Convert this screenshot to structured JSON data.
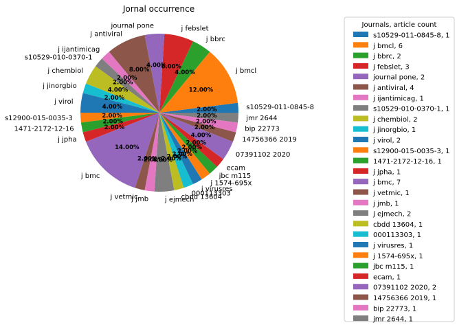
{
  "chart_data": {
    "type": "pie",
    "title": "Jornal occurrence",
    "legend_title": "Journals, article count",
    "legend_position": "right",
    "counterclockwise": true,
    "start_angle_deg": 0,
    "slices": [
      {
        "label": "s10529-011-0845-8",
        "value": 1,
        "percent": "2.00%",
        "legend": "s10529-011-0845-8, 1",
        "color": "#1f77b4"
      },
      {
        "label": "j bmcl",
        "value": 6,
        "percent": "12.00%",
        "legend": "j bmcl, 6",
        "color": "#ff7f0e"
      },
      {
        "label": "j bbrc",
        "value": 2,
        "percent": "4.00%",
        "legend": "j bbrc, 2",
        "color": "#2ca02c"
      },
      {
        "label": "j febslet",
        "value": 3,
        "percent": "6.00%",
        "legend": "j febslet, 3",
        "color": "#d62728"
      },
      {
        "label": "journal pone",
        "value": 2,
        "percent": "4.00%",
        "legend": "journal pone, 2",
        "color": "#9467bd"
      },
      {
        "label": "j antiviral",
        "value": 4,
        "percent": "8.00%",
        "legend": "j antiviral, 4",
        "color": "#8c564b"
      },
      {
        "label": "j ijantimicag",
        "value": 1,
        "percent": "2.00%",
        "legend": "j ijantimicag, 1",
        "color": "#e377c2"
      },
      {
        "label": "s10529-010-0370-1",
        "value": 1,
        "percent": "2.00%",
        "legend": "s10529-010-0370-1, 1",
        "color": "#7f7f7f"
      },
      {
        "label": "j chembiol",
        "value": 2,
        "percent": "4.00%",
        "legend": "j chembiol, 2",
        "color": "#bcbd22"
      },
      {
        "label": "j jinorgbio",
        "value": 1,
        "percent": "2.00%",
        "legend": "j jinorgbio, 1",
        "color": "#17becf"
      },
      {
        "label": "j virol",
        "value": 2,
        "percent": "4.00%",
        "legend": "j virol, 2",
        "color": "#1f77b4"
      },
      {
        "label": "s12900-015-0035-3",
        "value": 1,
        "percent": "2.00%",
        "legend": "s12900-015-0035-3, 1",
        "color": "#ff7f0e"
      },
      {
        "label": "1471-2172-12-16",
        "value": 1,
        "percent": "2.00%",
        "legend": "1471-2172-12-16, 1",
        "color": "#2ca02c"
      },
      {
        "label": "j jpha",
        "value": 1,
        "percent": "2.00%",
        "legend": "j jpha, 1",
        "color": "#d62728"
      },
      {
        "label": "j bmc",
        "value": 7,
        "percent": "14.00%",
        "legend": "j bmc, 7",
        "color": "#9467bd"
      },
      {
        "label": "j vetmic",
        "value": 1,
        "percent": "2.00%",
        "legend": "j vetmic, 1",
        "color": "#8c564b"
      },
      {
        "label": "j jmb",
        "value": 1,
        "percent": "2.00%",
        "legend": "j jmb, 1",
        "color": "#e377c2"
      },
      {
        "label": "j ejmech",
        "value": 2,
        "percent": "4.00%",
        "legend": "j ejmech, 2",
        "color": "#7f7f7f"
      },
      {
        "label": "cbdd 13604",
        "value": 1,
        "percent": "2.00%",
        "legend": "cbdd 13604, 1",
        "color": "#bcbd22"
      },
      {
        "label": "000113303",
        "value": 1,
        "percent": "2.00%",
        "legend": "000113303, 1",
        "color": "#17becf"
      },
      {
        "label": "j virusres",
        "value": 1,
        "percent": "2.00%",
        "legend": "j virusres, 1",
        "color": "#1f77b4"
      },
      {
        "label": "j 1574-695x",
        "value": 1,
        "percent": "2.00%",
        "legend": "j 1574-695x, 1",
        "color": "#ff7f0e"
      },
      {
        "label": "jbc m115",
        "value": 1,
        "percent": "2.00%",
        "legend": "jbc m115, 1",
        "color": "#2ca02c"
      },
      {
        "label": "ecam",
        "value": 1,
        "percent": "2.00%",
        "legend": "ecam, 1",
        "color": "#d62728"
      },
      {
        "label": "07391102 2020",
        "value": 2,
        "percent": "4.00%",
        "legend": "07391102 2020, 2",
        "color": "#9467bd"
      },
      {
        "label": "14756366 2019",
        "value": 1,
        "percent": "2.00%",
        "legend": "14756366 2019, 1",
        "color": "#8c564b"
      },
      {
        "label": "bip 22773",
        "value": 1,
        "percent": "2.00%",
        "legend": "bip 22773, 1",
        "color": "#e377c2"
      },
      {
        "label": "jmr 2644",
        "value": 1,
        "percent": "2.00%",
        "legend": "jmr 2644, 1",
        "color": "#7f7f7f"
      }
    ]
  }
}
